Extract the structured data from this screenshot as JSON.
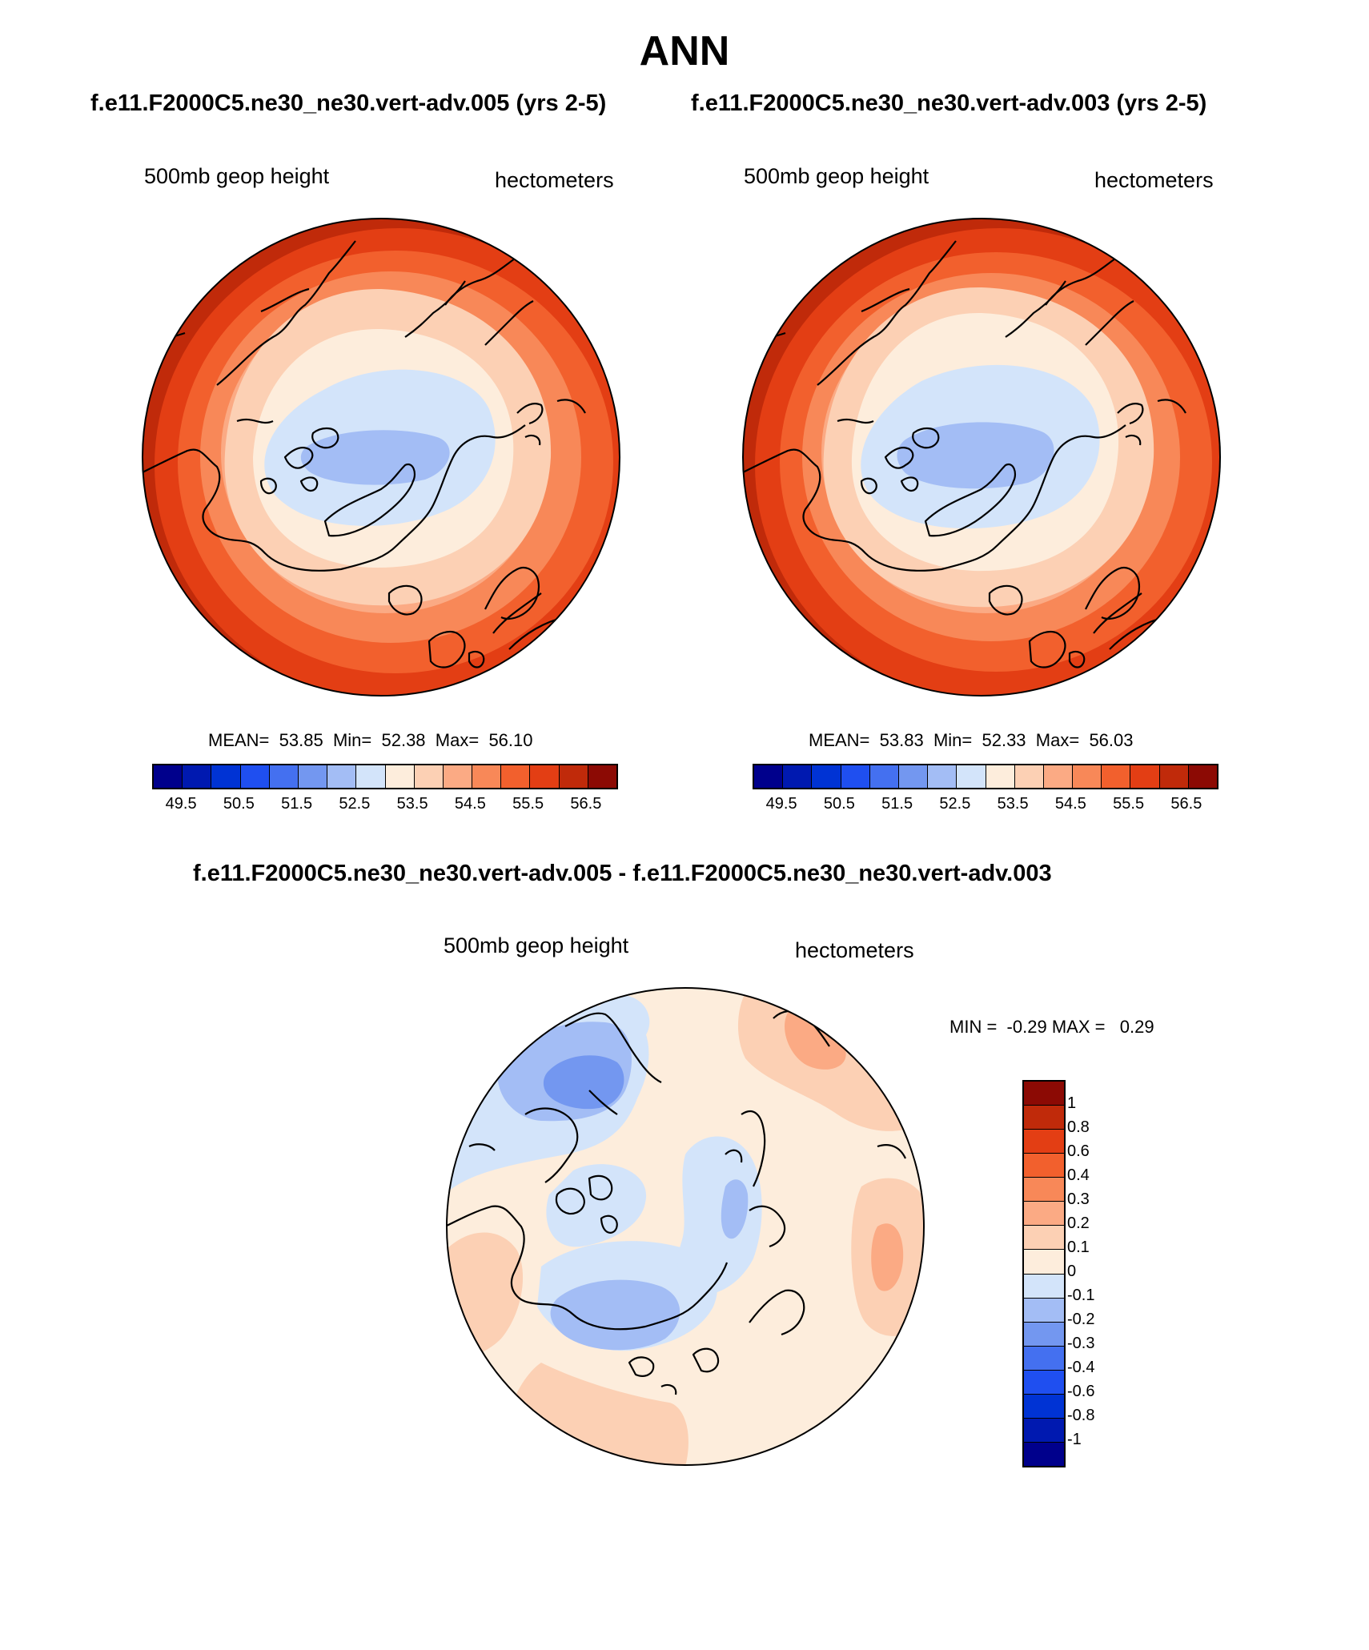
{
  "title": "ANN",
  "panels": [
    {
      "subtitle": "f.e11.F2000C5.ne30_ne30.vert-adv.005 (yrs 2-5)",
      "variable_label": "500mb geop height",
      "units_label": "hectometers",
      "stats": {
        "mean_label": "MEAN=",
        "mean": "53.85",
        "min_label": "Min=",
        "min": "52.38",
        "max_label": "Max=",
        "max": "56.10"
      }
    },
    {
      "subtitle": "f.e11.F2000C5.ne30_ne30.vert-adv.003 (yrs 2-5)",
      "variable_label": "500mb geop height",
      "units_label": "hectometers",
      "stats": {
        "mean_label": "MEAN=",
        "mean": "53.83",
        "min_label": "Min=",
        "min": "52.33",
        "max_label": "Max=",
        "max": "56.03"
      }
    }
  ],
  "diff_panel": {
    "subtitle": "f.e11.F2000C5.ne30_ne30.vert-adv.005 - f.e11.F2000C5.ne30_ne30.vert-adv.003",
    "variable_label": "500mb geop height",
    "units_label": "hectometers",
    "stats": {
      "min_label": "MIN =",
      "min": "-0.29",
      "max_label": "MAX =",
      "max": "0.29"
    }
  },
  "colorbar_top": {
    "colors": [
      "#00008c",
      "#0019b0",
      "#0033d4",
      "#1f4ff0",
      "#4470f0",
      "#7397f0",
      "#a3bdf5",
      "#d3e4fa",
      "#fdeddc",
      "#fcd0b4",
      "#fbaa84",
      "#f88858",
      "#f2602d",
      "#e33e14",
      "#c02a0a",
      "#8c0a04"
    ],
    "tick_labels": [
      "49.5",
      "50.5",
      "51.5",
      "52.5",
      "53.5",
      "54.5",
      "55.5",
      "56.5"
    ]
  },
  "colorbar_diff": {
    "colors": [
      "#8c0a04",
      "#c02a0a",
      "#e33e14",
      "#f2602d",
      "#f88858",
      "#fbaa84",
      "#fcd0b4",
      "#fdeddc",
      "#d3e4fa",
      "#a3bdf5",
      "#7397f0",
      "#4470f0",
      "#1f4ff0",
      "#0033d4",
      "#0019b0",
      "#00008c"
    ],
    "tick_labels": [
      "1",
      "0.8",
      "0.6",
      "0.4",
      "0.3",
      "0.2",
      "0.1",
      "0",
      "-0.1",
      "-0.2",
      "-0.3",
      "-0.4",
      "-0.6",
      "-0.8",
      "-1"
    ]
  }
}
